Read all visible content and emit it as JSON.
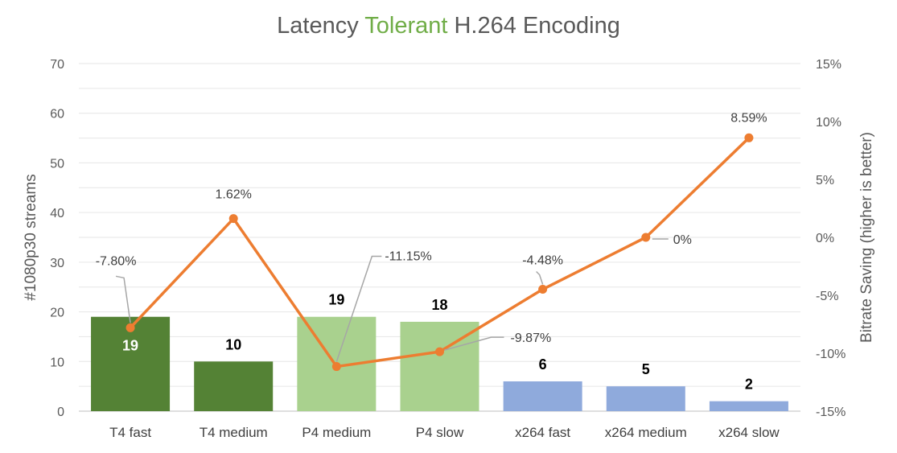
{
  "title": {
    "pre": "Latency ",
    "accent": "Tolerant",
    "post": " H.264 Encoding"
  },
  "colors": {
    "t4_bar": "#548235",
    "p4_bar": "#a9d18e",
    "x264_bar": "#8faadc",
    "line": "#ed7d31",
    "grid": "#e6e6e6",
    "axis_text": "#595959",
    "title_accent": "#70ad47"
  },
  "chart_data": {
    "type": "bar",
    "title": "Latency Tolerant H.264 Encoding",
    "categories": [
      "T4 fast",
      "T4 medium",
      "P4 medium",
      "P4 slow",
      "x264 fast",
      "x264 medium",
      "x264 slow"
    ],
    "series": [
      {
        "type": "bar",
        "axis": "left",
        "values": [
          19,
          10,
          19,
          18,
          6,
          5,
          2
        ],
        "data_labels": [
          "19",
          "10",
          "19",
          "18",
          "6",
          "5",
          "2"
        ]
      },
      {
        "type": "line",
        "axis": "right",
        "values": [
          -7.8,
          1.62,
          -11.15,
          -9.87,
          -4.48,
          0,
          8.59
        ],
        "data_labels": [
          "-7.80%",
          "1.62%",
          "-11.15%",
          "-9.87%",
          "-4.48%",
          "0%",
          "8.59%"
        ]
      }
    ],
    "ylabel": "#1080p30 streams",
    "ylim": [
      0,
      70
    ],
    "yticks": [
      "0",
      "10",
      "20",
      "30",
      "40",
      "50",
      "60",
      "70"
    ],
    "y2label": "Bitrate Saving (higher is better)",
    "y2lim": [
      -15,
      15
    ],
    "y2ticks": [
      "-15%",
      "-10%",
      "-5%",
      "0%",
      "5%",
      "10%",
      "15%"
    ],
    "grid": true,
    "legend": "none"
  }
}
